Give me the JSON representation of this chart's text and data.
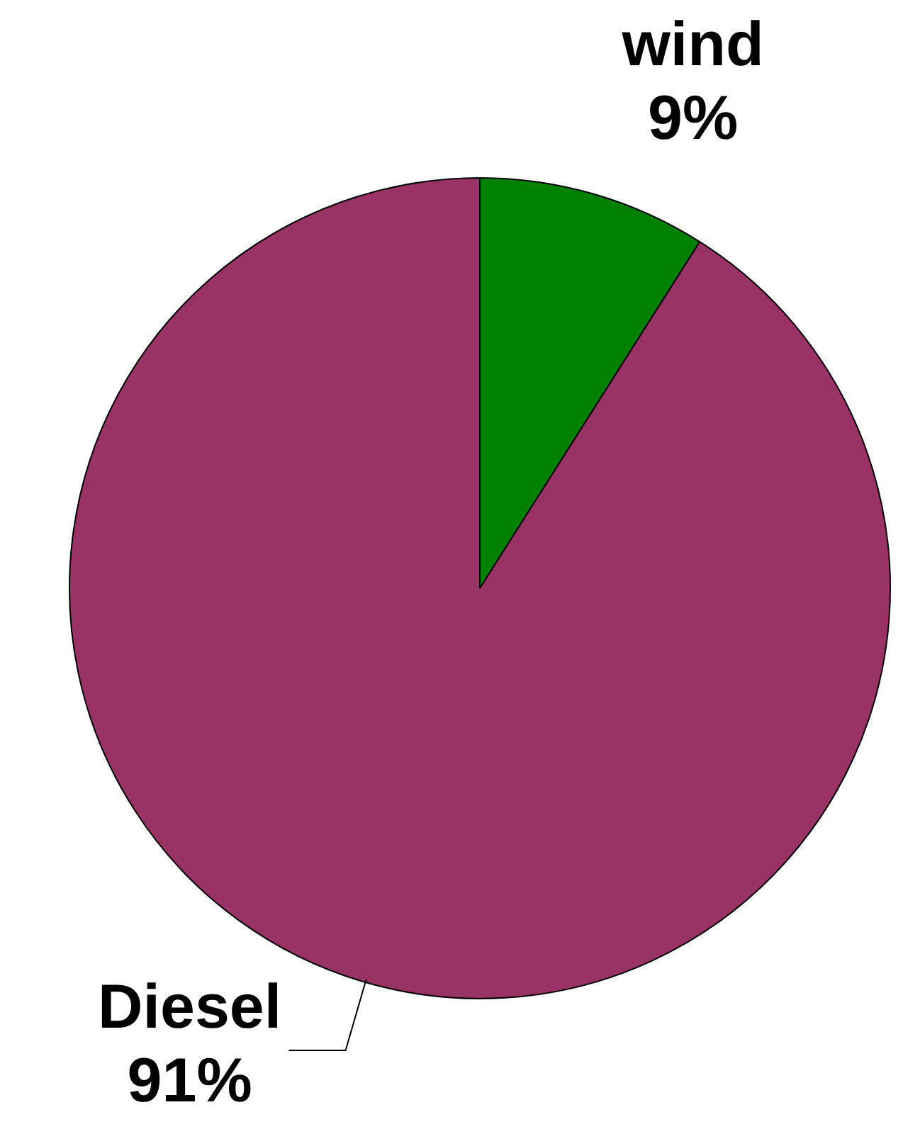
{
  "chart_data": {
    "type": "pie",
    "categories": [
      "wind",
      "Diesel"
    ],
    "values": [
      9,
      91
    ],
    "colors": [
      "#008000",
      "#993366"
    ],
    "value_labels": [
      "9%",
      "91%"
    ],
    "legend": false
  }
}
